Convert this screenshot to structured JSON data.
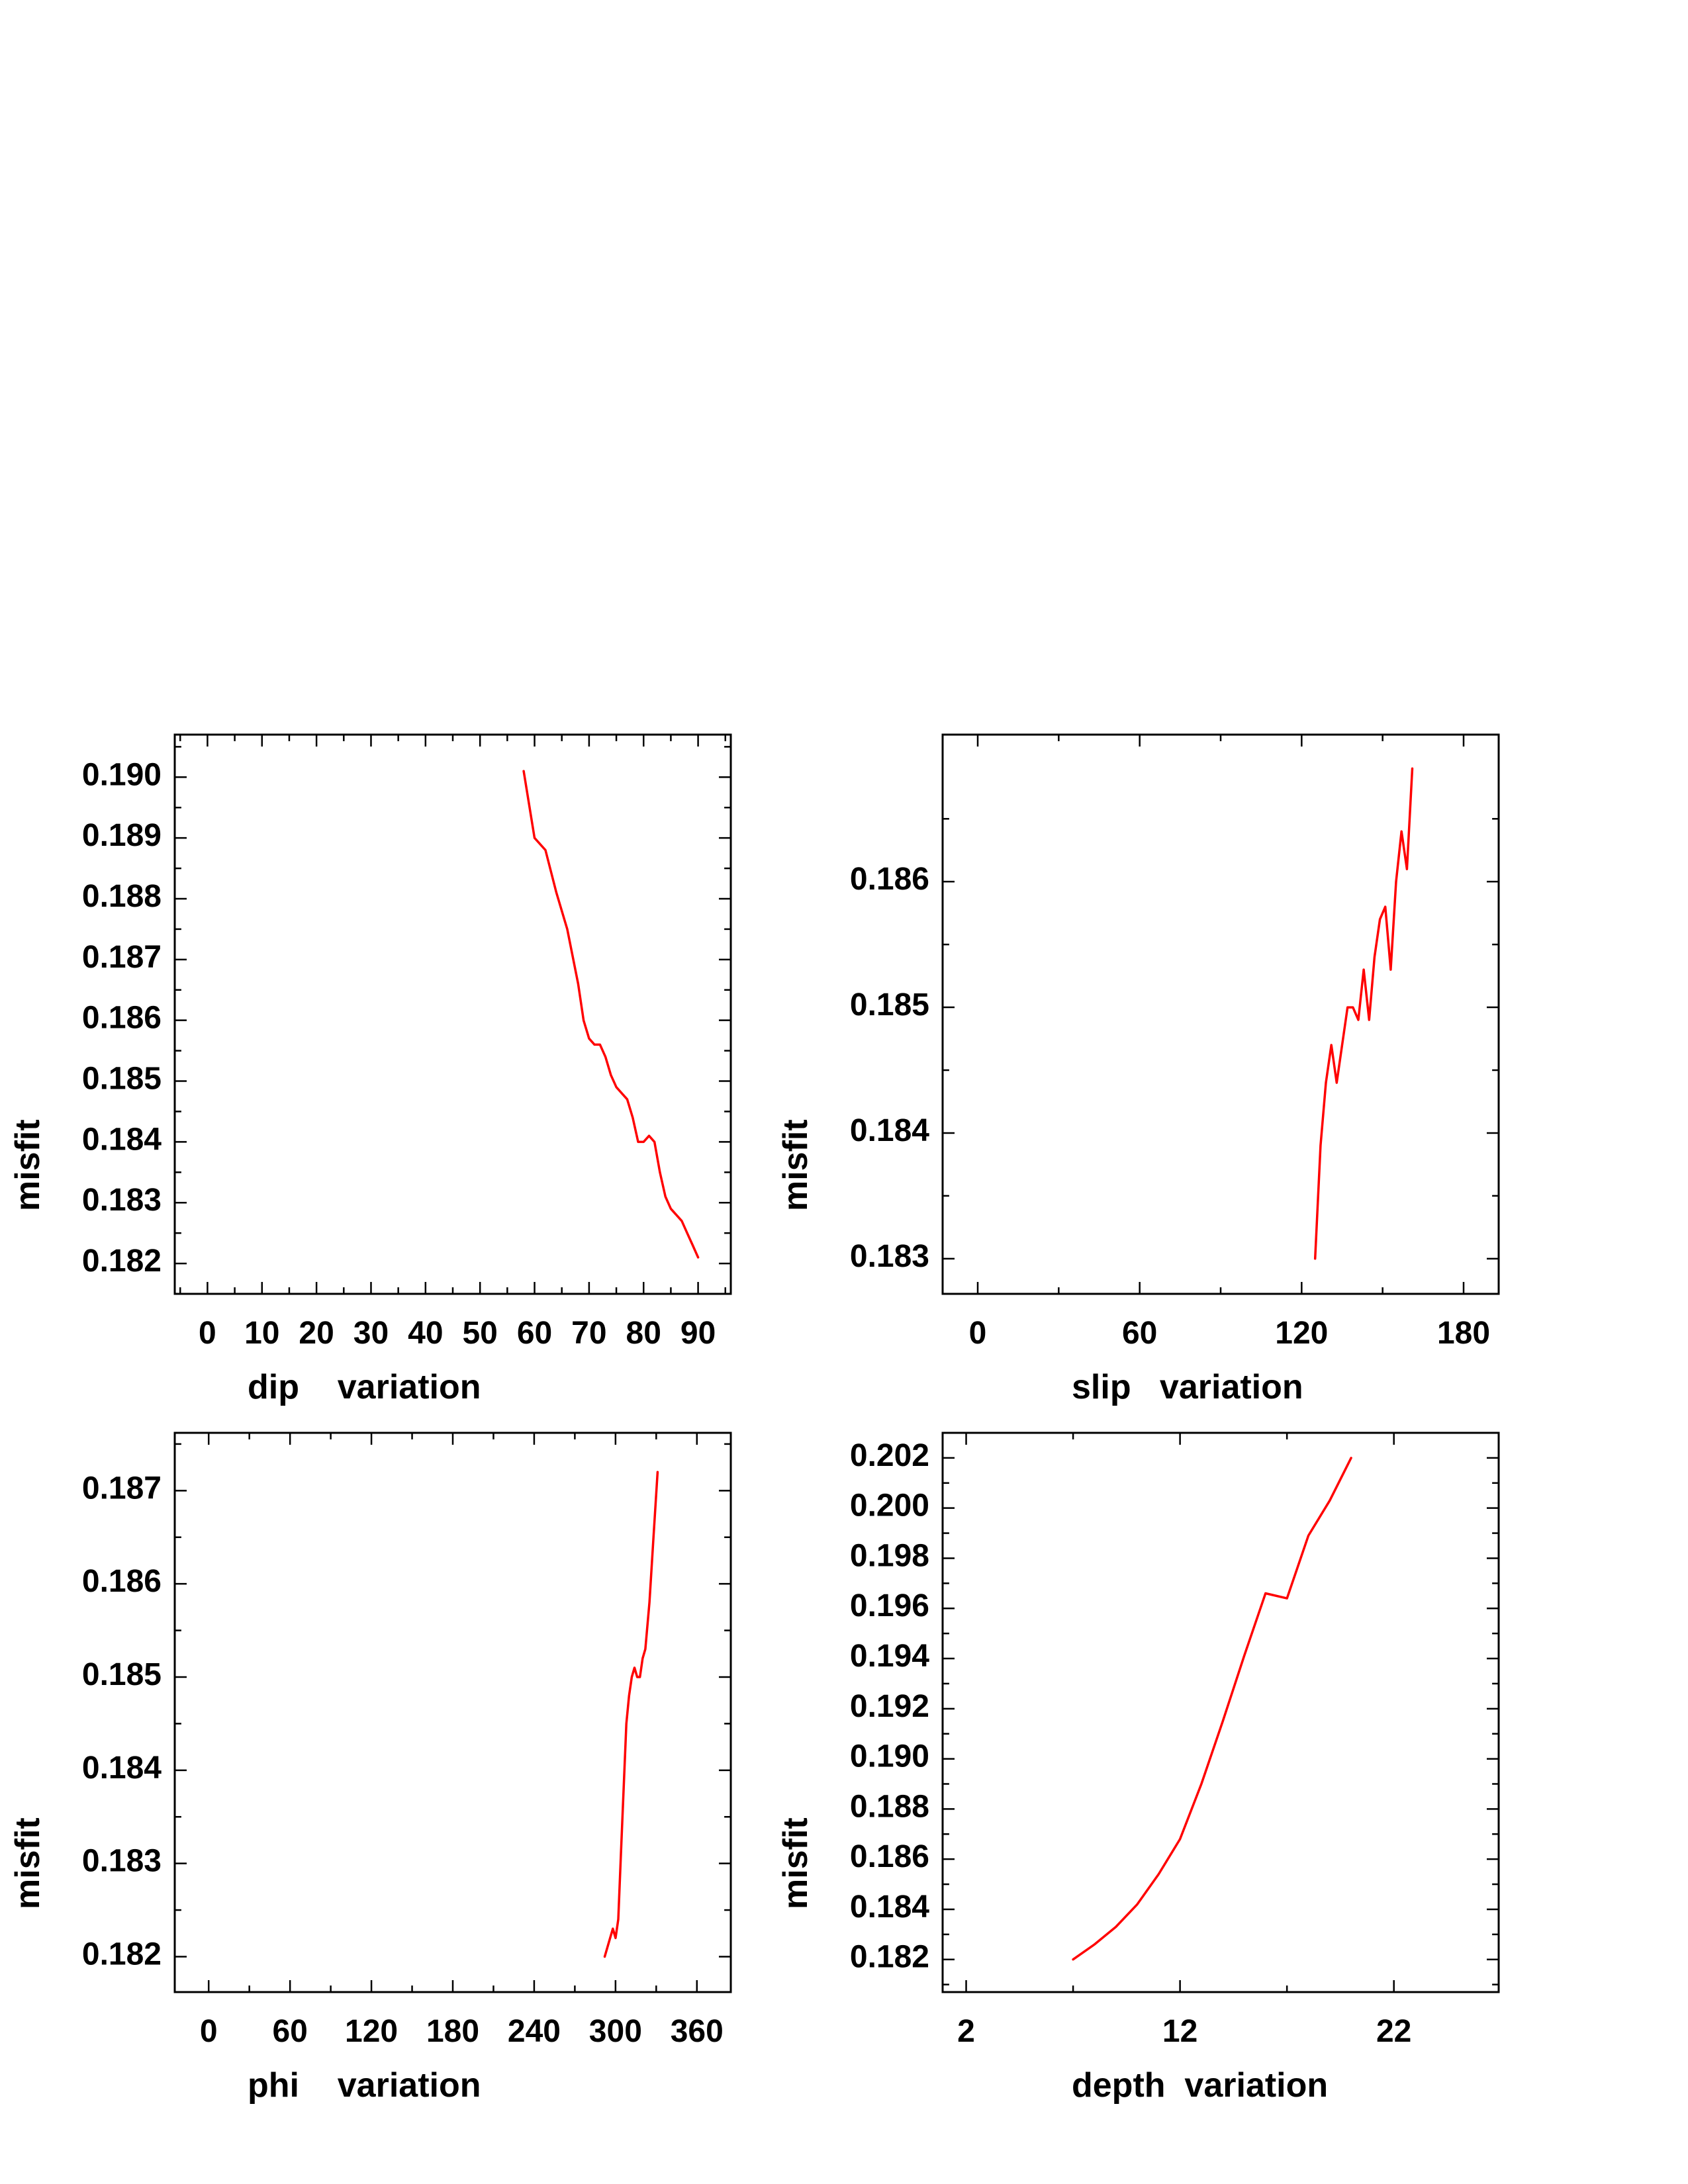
{
  "colors": {
    "series": "#ff0000",
    "axes": "#000000",
    "background": "#ffffff"
  },
  "chart_data": [
    {
      "type": "line",
      "xlabel": "dip    variation",
      "ylabel": "misfit",
      "xlim": [
        -6,
        96
      ],
      "ylim": [
        0.1815,
        0.1907
      ],
      "xticks": [
        0,
        10,
        20,
        30,
        40,
        50,
        60,
        70,
        80,
        90
      ],
      "xtick_labels": [
        "0",
        "10",
        "20",
        "30",
        "40",
        "50",
        "60",
        "70",
        "80",
        "90"
      ],
      "yticks": [
        0.182,
        0.183,
        0.184,
        0.185,
        0.186,
        0.187,
        0.188,
        0.189,
        0.19
      ],
      "ytick_labels": [
        "0.182",
        "0.183",
        "0.184",
        "0.185",
        "0.186",
        "0.187",
        "0.188",
        "0.189",
        "0.190"
      ],
      "series": [
        {
          "color": "#ff0000",
          "x": [
            58,
            60,
            62,
            64,
            66,
            68,
            69,
            70,
            71,
            72,
            73,
            74,
            75,
            76,
            77,
            78,
            79,
            80,
            81,
            82,
            83,
            84,
            85,
            86,
            87,
            88,
            89,
            90
          ],
          "y": [
            0.1901,
            0.189,
            0.1888,
            0.1881,
            0.1875,
            0.1866,
            0.186,
            0.1857,
            0.1856,
            0.1856,
            0.1854,
            0.1851,
            0.1849,
            0.1848,
            0.1847,
            0.1844,
            0.184,
            0.184,
            0.1841,
            0.184,
            0.1835,
            0.1831,
            0.1829,
            0.1828,
            0.1827,
            0.1825,
            0.1823,
            0.1821
          ]
        }
      ]
    },
    {
      "type": "line",
      "xlabel": "slip   variation",
      "ylabel": "misfit",
      "xlim": [
        -13,
        193
      ],
      "ylim": [
        0.18272,
        0.18717
      ],
      "xticks": [
        0,
        60,
        120,
        180
      ],
      "xtick_labels": [
        "0",
        "60",
        "120",
        "180"
      ],
      "yticks": [
        0.183,
        0.184,
        0.185,
        0.186
      ],
      "ytick_labels": [
        "0.183",
        "0.184",
        "0.185",
        "0.186"
      ],
      "series": [
        {
          "color": "#ff0000",
          "x": [
            125,
            127,
            129,
            131,
            133,
            135,
            137,
            139,
            141,
            143,
            145,
            147,
            149,
            151,
            153,
            155,
            157,
            159,
            161
          ],
          "y": [
            0.183,
            0.1839,
            0.1844,
            0.1847,
            0.1844,
            0.1847,
            0.185,
            0.185,
            0.1849,
            0.1853,
            0.1849,
            0.1854,
            0.1857,
            0.1858,
            0.1853,
            0.186,
            0.1864,
            0.1861,
            0.1869
          ]
        }
      ]
    },
    {
      "type": "line",
      "xlabel": "phi    variation",
      "ylabel": "misfit",
      "xlim": [
        -25,
        385
      ],
      "ylim": [
        0.18162,
        0.18762
      ],
      "xticks": [
        0,
        60,
        120,
        180,
        240,
        300,
        360
      ],
      "xtick_labels": [
        "0",
        "60",
        "120",
        "180",
        "240",
        "300",
        "360"
      ],
      "yticks": [
        0.182,
        0.183,
        0.184,
        0.185,
        0.186,
        0.187
      ],
      "ytick_labels": [
        "0.182",
        "0.183",
        "0.184",
        "0.185",
        "0.186",
        "0.187"
      ],
      "series": [
        {
          "color": "#ff0000",
          "x": [
            292,
            294,
            296,
            298,
            300,
            302,
            304,
            306,
            308,
            310,
            312,
            314,
            316,
            318,
            320,
            322,
            325,
            328,
            331
          ],
          "y": [
            0.182,
            0.1821,
            0.1822,
            0.1823,
            0.1822,
            0.1824,
            0.1831,
            0.1838,
            0.1845,
            0.1848,
            0.185,
            0.1851,
            0.185,
            0.185,
            0.1852,
            0.1853,
            0.1858,
            0.1865,
            0.1872
          ]
        }
      ]
    },
    {
      "type": "line",
      "xlabel": "depth  variation",
      "ylabel": "misfit",
      "xlim": [
        0.9,
        26.9
      ],
      "ylim": [
        0.1807,
        0.203
      ],
      "xticks": [
        2,
        12,
        22
      ],
      "xtick_labels": [
        "2",
        "12",
        "22"
      ],
      "yticks": [
        0.182,
        0.184,
        0.186,
        0.188,
        0.19,
        0.192,
        0.194,
        0.196,
        0.198,
        0.2,
        0.202
      ],
      "ytick_labels": [
        "0.182",
        "0.184",
        "0.186",
        "0.188",
        "0.190",
        "0.192",
        "0.194",
        "0.196",
        "0.198",
        "0.200",
        "0.202"
      ],
      "series": [
        {
          "color": "#ff0000",
          "x": [
            7,
            8,
            9,
            10,
            11,
            12,
            13,
            14,
            15,
            16,
            17,
            18,
            19,
            20
          ],
          "y": [
            0.182,
            0.1826,
            0.1833,
            0.1842,
            0.1854,
            0.1868,
            0.189,
            0.1915,
            0.1941,
            0.1966,
            0.1964,
            0.1989,
            0.2003,
            0.202
          ]
        }
      ]
    }
  ]
}
